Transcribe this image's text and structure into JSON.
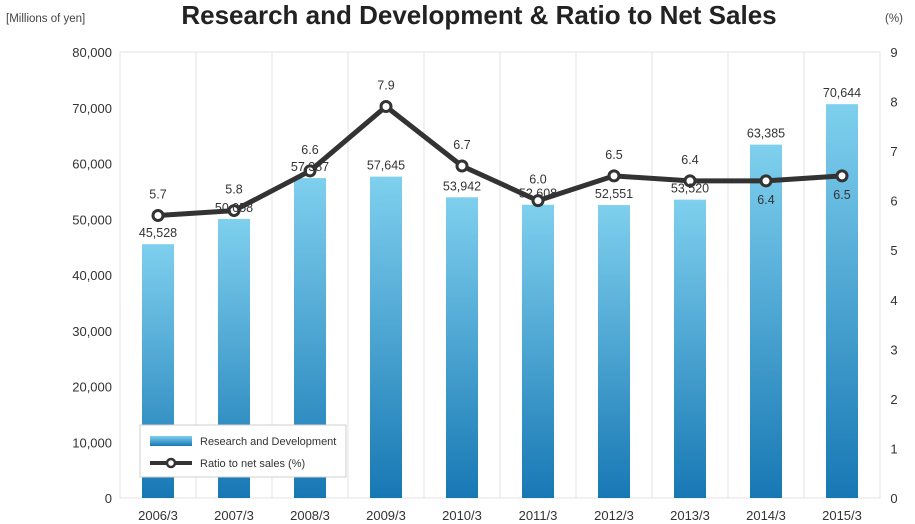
{
  "chart_data": {
    "type": "bar",
    "title": "Research and Development & Ratio to Net Sales",
    "ylabel": "[Millions of yen]",
    "y2label": "(%)",
    "categories": [
      "2006/3",
      "2007/3",
      "2008/3",
      "2009/3",
      "2010/3",
      "2011/3",
      "2012/3",
      "2013/3",
      "2014/3",
      "2015/3"
    ],
    "series": [
      {
        "name": "Research and Development",
        "type": "bar",
        "axis": "left",
        "values": [
          45528,
          50058,
          57387,
          57645,
          53942,
          52608,
          52551,
          53520,
          63385,
          70644
        ],
        "labels": [
          "45,528",
          "50,058",
          "57,387",
          "57,645",
          "53,942",
          "52,608",
          "52,551",
          "53,520",
          "63,385",
          "70,644"
        ]
      },
      {
        "name": "Ratio to net sales (%)",
        "type": "line",
        "axis": "right",
        "values": [
          5.7,
          5.8,
          6.6,
          7.9,
          6.7,
          6.0,
          6.5,
          6.4,
          6.4,
          6.5
        ],
        "labels": [
          "5.7",
          "5.8",
          "6.6",
          "7.9",
          "6.7",
          "6.0",
          "6.5",
          "6.4",
          "6.4",
          "6.5"
        ]
      }
    ],
    "ylim": [
      0,
      80000
    ],
    "y2lim": [
      0,
      9
    ],
    "yticks": [
      "0",
      "10,000",
      "20,000",
      "30,000",
      "40,000",
      "50,000",
      "60,000",
      "70,000",
      "80,000"
    ],
    "y2ticks": [
      "0",
      "1",
      "2",
      "3",
      "4",
      "5",
      "6",
      "7",
      "8",
      "9"
    ],
    "grid": "vertical",
    "legend": "bottom-left",
    "colors": {
      "bar_top": "#7fd0ee",
      "bar_bottom": "#1878b4",
      "line": "#333333",
      "grid": "#e3e3e3"
    }
  }
}
